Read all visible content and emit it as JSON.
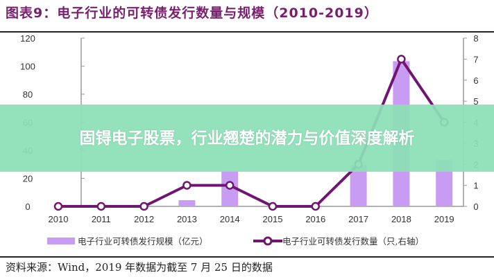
{
  "chart_data": {
    "type": "bar+line",
    "title": "图表9：电子行业的可转债发行数量与规模（2010-2019）",
    "categories": [
      "2010",
      "2011",
      "2012",
      "2013",
      "2014",
      "2015",
      "2016",
      "2017",
      "2018",
      "2019"
    ],
    "series": [
      {
        "name": "电子行业可转债发行规模（亿元）",
        "type": "bar",
        "axis": "left",
        "color": "#c89cf2",
        "values": [
          0,
          0,
          0,
          4.4,
          25,
          0,
          0,
          29.5,
          103.5,
          33
        ]
      },
      {
        "name": "电子行业可转债发行数量（只,右轴）",
        "type": "line",
        "axis": "right",
        "color": "#6e1670",
        "values": [
          0,
          0,
          0,
          1,
          1,
          0,
          0,
          2,
          7,
          4
        ]
      }
    ],
    "y_left": {
      "range": [
        0,
        120
      ],
      "ticks": [
        0,
        20,
        40,
        60,
        80,
        100,
        120
      ]
    },
    "y_right": {
      "range": [
        0,
        8
      ],
      "ticks": [
        0,
        1,
        2,
        3,
        4,
        5,
        6,
        7,
        8
      ]
    },
    "grid": false,
    "legend_position": "bottom",
    "source": "资料来源：Wind，2019 年数据为截至 7 月 25 日的数据"
  },
  "overlay": {
    "headline": "固锝电子股票，行业翘楚的潜力与价值深度解析",
    "color": "#8ce0b6"
  }
}
